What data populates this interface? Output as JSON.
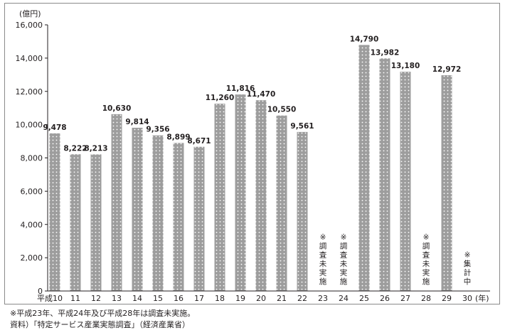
{
  "chart_data": {
    "type": "bar",
    "ylabel": "(億円)",
    "xunit": "(年)",
    "ylim": [
      0,
      16000
    ],
    "yticks": [
      "0",
      "2,000",
      "4,000",
      "6,000",
      "8,000",
      "10,000",
      "12,000",
      "14,000",
      "16,000"
    ],
    "categories": [
      "平成10",
      "11",
      "12",
      "13",
      "14",
      "15",
      "16",
      "17",
      "18",
      "19",
      "20",
      "21",
      "22",
      "23",
      "24",
      "25",
      "26",
      "27",
      "28",
      "29",
      "30"
    ],
    "values": [
      9478,
      8222,
      8213,
      10630,
      9814,
      9356,
      8899,
      8671,
      11260,
      11816,
      11470,
      10550,
      9561,
      null,
      null,
      14790,
      13982,
      13180,
      null,
      12972,
      null
    ],
    "value_labels": [
      "9,478",
      "8,222",
      "8,213",
      "10,630",
      "9,814",
      "9,356",
      "8,899",
      "8,671",
      "11,260",
      "11,816",
      "11,470",
      "10,550",
      "9,561",
      "",
      "",
      "14,790",
      "13,982",
      "13,180",
      "",
      "12,972",
      ""
    ],
    "annotations": [
      {
        "category": "23",
        "text": "※調査未実施"
      },
      {
        "category": "24",
        "text": "※調査未実施"
      },
      {
        "category": "28",
        "text": "※調査未実施"
      },
      {
        "category": "30",
        "text": "※集計中"
      }
    ],
    "bar_color": "#9d9d9d",
    "grid": false
  },
  "footnotes": {
    "note": "※平成23年、平成24年及び平成28年は調査未実施。",
    "source": "資料）「特定サービス産業実態調査」（経済産業省）"
  }
}
